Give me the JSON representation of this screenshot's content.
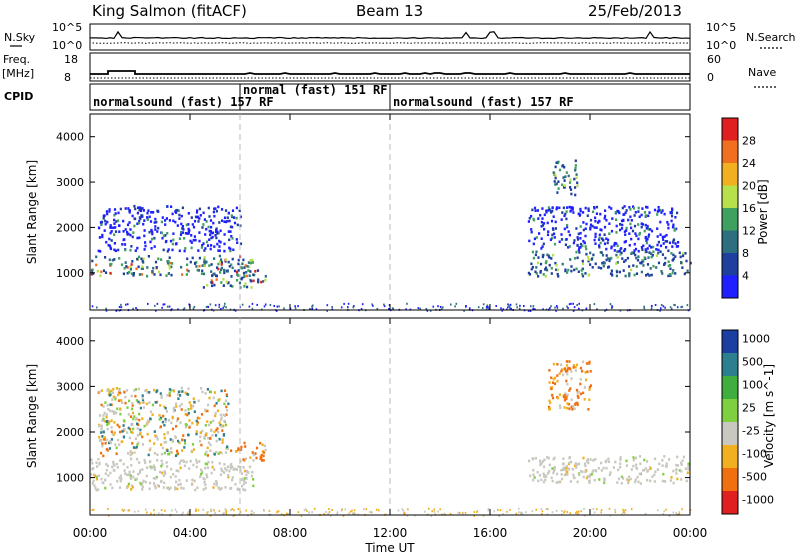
{
  "header": {
    "station": "King Salmon (fitACF)",
    "beam": "Beam 13",
    "date": "25/Feb/2013"
  },
  "left_labels": {
    "nsky": "N.Sky",
    "freq_line1": "Freq.",
    "freq_line2": "[MHz]",
    "cpid": "CPID"
  },
  "right_labels": {
    "nsearch": "N.Search",
    "nave": "Nave"
  },
  "noise_axis": {
    "left_ticks": [
      "10^5",
      "10^0"
    ],
    "right_ticks": [
      "10^5",
      "10^0"
    ]
  },
  "freq_axis": {
    "left_ticks": [
      "18",
      "8"
    ],
    "right_ticks": [
      "60",
      "0"
    ]
  },
  "cpid_segments": [
    {
      "label": "normalsound (fast) 157 RF",
      "start_hour": 0
    },
    {
      "label": "normal (fast) 151 RF",
      "start_hour": 6
    },
    {
      "label": "normalsound (fast) 157 RF",
      "start_hour": 12
    }
  ],
  "chart_data": [
    {
      "type": "heatmap",
      "name": "power",
      "ylabel": "Slant Range [km]",
      "xlabel": "Time UT",
      "x_ticks": [
        "00:00",
        "04:00",
        "08:00",
        "12:00",
        "16:00",
        "20:00",
        "00:00"
      ],
      "xlim_hours": [
        0,
        24
      ],
      "y_ticks": [
        1000,
        2000,
        3000,
        4000
      ],
      "ylim": [
        180,
        4500
      ],
      "colorbar": {
        "label": "Power [dB]",
        "ticks": [
          4,
          8,
          12,
          16,
          20,
          24,
          28
        ],
        "range": [
          0,
          32
        ],
        "colors": [
          "#1f1fff",
          "#1f3f9f",
          "#2e6f7f",
          "#3fa05f",
          "#b8e04a",
          "#f0b020",
          "#f07020",
          "#e02020"
        ]
      },
      "regions": [
        {
          "t0": 0.0,
          "t1": 6.5,
          "r0": 950,
          "r1": 1400,
          "level": "high"
        },
        {
          "t0": 0.3,
          "t1": 6.0,
          "r0": 1500,
          "r1": 2500,
          "level": "low"
        },
        {
          "t0": 4.5,
          "t1": 7.0,
          "r0": 700,
          "r1": 1100,
          "level": "high"
        },
        {
          "t0": 17.5,
          "t1": 24.0,
          "r0": 950,
          "r1": 1500,
          "level": "mid"
        },
        {
          "t0": 17.5,
          "t1": 23.5,
          "r0": 1500,
          "r1": 2500,
          "level": "low"
        },
        {
          "t0": 18.5,
          "t1": 19.5,
          "r0": 2700,
          "r1": 3500,
          "level": "mid"
        }
      ]
    },
    {
      "type": "heatmap",
      "name": "velocity",
      "ylabel": "Slant Range [km]",
      "xlabel": "Time UT",
      "x_ticks": [
        "00:00",
        "04:00",
        "08:00",
        "12:00",
        "16:00",
        "20:00",
        "00:00"
      ],
      "xlim_hours": [
        0,
        24
      ],
      "y_ticks": [
        1000,
        2000,
        3000,
        4000
      ],
      "ylim": [
        180,
        4500
      ],
      "colorbar": {
        "label": "Velocity [m s^-1]",
        "ticks": [
          "1000",
          "500",
          "100",
          "25",
          "-25",
          "-100",
          "-500",
          "-1000"
        ],
        "colors": [
          "#1a3fa0",
          "#2b7f8f",
          "#3fae3f",
          "#7fd040",
          "#c8c8c0",
          "#f0b020",
          "#f07010",
          "#e02020"
        ]
      },
      "regions": [
        {
          "t0": 0.0,
          "t1": 6.5,
          "r0": 750,
          "r1": 1450,
          "level": "ground"
        },
        {
          "t0": 0.3,
          "t1": 5.5,
          "r0": 1500,
          "r1": 3000,
          "level": "mixed"
        },
        {
          "t0": 5.5,
          "t1": 7.0,
          "r0": 1400,
          "r1": 1800,
          "level": "neg"
        },
        {
          "t0": 17.5,
          "t1": 24.0,
          "r0": 900,
          "r1": 1500,
          "level": "ground"
        },
        {
          "t0": 18.3,
          "t1": 20.0,
          "r0": 2500,
          "r1": 3600,
          "level": "neg"
        }
      ]
    }
  ]
}
